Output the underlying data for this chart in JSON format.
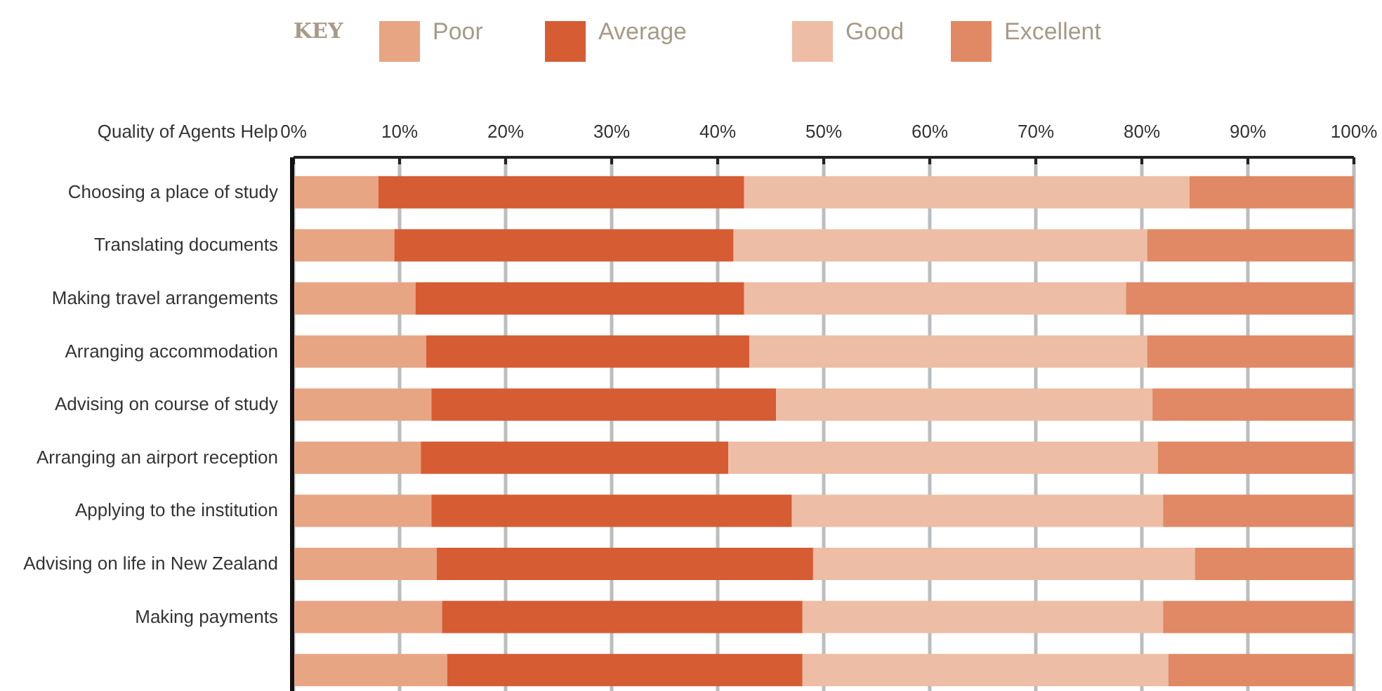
{
  "chart_data": {
    "type": "bar",
    "orientation": "horizontal",
    "stacked": true,
    "ylabel": "Quality of Agents Help",
    "legend_title": "KEY",
    "legend": "top",
    "grid": "x",
    "categories": [
      "Choosing a place of study",
      "Translating documents",
      "Making travel arrangements",
      "Arranging accommodation",
      "Advising on course of study",
      "Arranging an airport reception",
      "Applying to the institution",
      "Advising on life in New Zealand",
      "Making payments",
      null
    ],
    "xlim": [
      0,
      100
    ],
    "xticks": [
      {
        "value": 0,
        "label": "0%"
      },
      {
        "value": 10,
        "label": "10%"
      },
      {
        "value": 20,
        "label": "20%"
      },
      {
        "value": 30,
        "label": "30%"
      },
      {
        "value": 40,
        "label": "40%"
      },
      {
        "value": 50,
        "label": "50%"
      },
      {
        "value": 60,
        "label": "60%"
      },
      {
        "value": 70,
        "label": "70%"
      },
      {
        "value": 80,
        "label": "80%"
      },
      {
        "value": 90,
        "label": "90%"
      },
      {
        "value": 100,
        "label": "100%"
      }
    ],
    "series": [
      {
        "name": "Poor",
        "color": "#e8a584",
        "values": [
          8,
          9.5,
          11.5,
          12.5,
          13,
          12,
          13,
          13.5,
          14,
          14.5
        ]
      },
      {
        "name": "Average",
        "color": "#d65c33",
        "values": [
          34.5,
          32,
          31,
          30.5,
          32.5,
          29,
          34,
          35.5,
          34,
          33.5
        ]
      },
      {
        "name": "Good",
        "color": "#edbda5",
        "values": [
          42,
          39,
          36,
          37.5,
          35.5,
          40.5,
          35,
          36,
          34,
          34.5
        ]
      },
      {
        "name": "Excellent",
        "color": "#e08964",
        "values": [
          15.5,
          19.5,
          21.5,
          19.5,
          19,
          18.5,
          18,
          15,
          18,
          17.5
        ]
      }
    ]
  }
}
